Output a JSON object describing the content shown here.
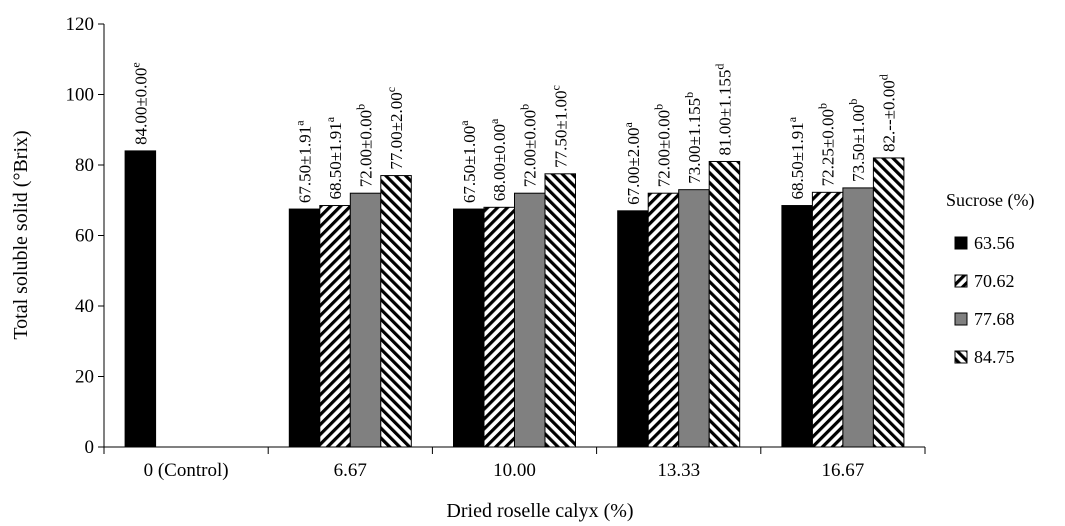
{
  "colors": {
    "black": "#000000",
    "gray": "#808080",
    "white": "#ffffff"
  },
  "chart_data": {
    "type": "bar",
    "xlabel": "Dried roselle calyx (%)",
    "ylabel": "Total soluble solid (°Brix)",
    "ylim": [
      0,
      120
    ],
    "yticks": [
      0,
      20,
      40,
      60,
      80,
      100,
      120
    ],
    "grid": false,
    "legend_position": "right",
    "legend_title": "Sucrose (%)",
    "categories": [
      "0 (Control)",
      "6.67",
      "10.00",
      "13.33",
      "16.67"
    ],
    "series": [
      {
        "name": "63.56",
        "pattern": "solid-black",
        "values": [
          84.0,
          67.5,
          67.5,
          67.0,
          68.5
        ],
        "labels": [
          {
            "text": "84.00±0.00",
            "sup": "e"
          },
          {
            "text": "67.50±1.91",
            "sup": "a"
          },
          {
            "text": "67.50±1.00",
            "sup": "a"
          },
          {
            "text": "67.00±2.00",
            "sup": "a"
          },
          {
            "text": "68.50±1.91",
            "sup": "a"
          }
        ]
      },
      {
        "name": "70.62",
        "pattern": "diagonal-up",
        "values": [
          null,
          68.5,
          68.0,
          72.0,
          72.25
        ],
        "labels": [
          null,
          {
            "text": "68.50±1.91",
            "sup": "a"
          },
          {
            "text": "68.00±0.00",
            "sup": "a"
          },
          {
            "text": "72.00±0.00",
            "sup": "b"
          },
          {
            "text": "72.25±0.00",
            "sup": "b"
          }
        ]
      },
      {
        "name": "77.68",
        "pattern": "solid-gray",
        "values": [
          null,
          72.0,
          72.0,
          73.0,
          73.5
        ],
        "labels": [
          null,
          {
            "text": "72.00±0.00",
            "sup": "b"
          },
          {
            "text": "72.00±0.00",
            "sup": "b"
          },
          {
            "text": "73.00±1.155",
            "sup": "b"
          },
          {
            "text": "73.50±1.00",
            "sup": "b"
          }
        ]
      },
      {
        "name": "84.75",
        "pattern": "diagonal-down",
        "values": [
          null,
          77.0,
          77.5,
          81.0,
          82.0
        ],
        "labels": [
          null,
          {
            "text": "77.00±2.00",
            "sup": "c"
          },
          {
            "text": "77.50±1.00",
            "sup": "c"
          },
          {
            "text": "81.00±1.155",
            "sup": "d"
          },
          {
            "text": "82.--±0.00",
            "sup": "d"
          }
        ]
      }
    ]
  }
}
